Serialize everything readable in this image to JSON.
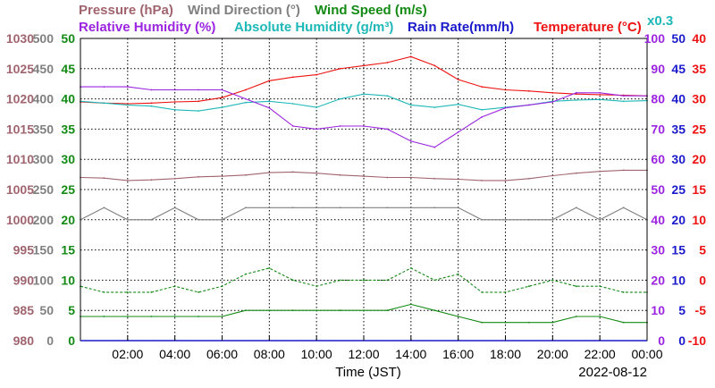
{
  "chart_data": {
    "type": "line",
    "date": "2022-08-12",
    "xlabel": "Time (JST)",
    "x_ticks": [
      "02:00",
      "04:00",
      "06:00",
      "08:00",
      "10:00",
      "12:00",
      "14:00",
      "16:00",
      "18:00",
      "20:00",
      "22:00",
      "00:00"
    ],
    "x_range_hours": [
      0,
      24
    ],
    "legend": [
      {
        "key": "pressure",
        "name": "Pressure (hPa)",
        "color": "#a0646e"
      },
      {
        "key": "wind_dir",
        "name": "Wind Direction (°)",
        "color": "#808080"
      },
      {
        "key": "wind_speed",
        "name": "Wind Speed (m/s)",
        "color": "#138a13"
      },
      {
        "key": "rh",
        "name": "Relative Humidity (%)",
        "color": "#9b25e0"
      },
      {
        "key": "ah",
        "name": "Absolute Humidity (g/m³)",
        "color": "#1fb8b8"
      },
      {
        "key": "rain",
        "name": "Rain Rate(mm/h)",
        "color": "#1a1acc"
      },
      {
        "key": "temp",
        "name": "Temperature (°C)",
        "color": "#ee1111"
      }
    ],
    "ah_scale_note": "x0.3",
    "axes": {
      "pressure": {
        "range": [
          980,
          1030
        ],
        "ticks": [
          "1030",
          "1025",
          "1020",
          "1015",
          "1010",
          "1005",
          "1000",
          "995",
          "990",
          "985",
          "980"
        ],
        "color": "#a0646e"
      },
      "wind_dir": {
        "range": [
          0,
          500
        ],
        "ticks": [
          "500",
          "450",
          "400",
          "350",
          "300",
          "250",
          "200",
          "150",
          "100",
          "50",
          "0"
        ],
        "color": "#808080"
      },
      "wind_speed": {
        "range": [
          0,
          50
        ],
        "ticks": [
          "50",
          "45",
          "40",
          "35",
          "30",
          "25",
          "20",
          "15",
          "10",
          "5",
          "0"
        ],
        "color": "#138a13"
      },
      "rh": {
        "range": [
          0,
          100
        ],
        "ticks": [
          "100",
          "90",
          "80",
          "70",
          "60",
          "50",
          "40",
          "30",
          "20",
          "10",
          "0"
        ],
        "color": "#9b25e0"
      },
      "rain": {
        "range": [
          0,
          50
        ],
        "ticks": [
          "50",
          "45",
          "40",
          "35",
          "30",
          "25",
          "20",
          "15",
          "10",
          "5",
          "0"
        ],
        "color": "#1a1acc"
      },
      "temp": {
        "range": [
          -10,
          40
        ],
        "ticks": [
          "40",
          "35",
          "30",
          "25",
          "20",
          "15",
          "10",
          "5",
          "0",
          "-5",
          "-10"
        ],
        "color": "#ee1111"
      }
    },
    "series": [
      {
        "key": "temp",
        "name": "Temperature (°C)",
        "color": "#ee1111",
        "x": [
          0,
          1,
          2,
          3,
          4,
          5,
          6,
          7,
          8,
          9,
          10,
          11,
          12,
          13,
          14,
          15,
          16,
          17,
          18,
          19,
          20,
          21,
          22,
          23,
          24
        ],
        "y": [
          29.5,
          29.3,
          29.2,
          29.3,
          29.5,
          29.6,
          30.2,
          31.5,
          33.0,
          33.6,
          34.0,
          35.0,
          35.5,
          36.0,
          37.0,
          35.5,
          33.2,
          32.0,
          31.5,
          31.3,
          31.0,
          30.8,
          30.7,
          30.6,
          30.5
        ]
      },
      {
        "key": "ah",
        "name": "Absolute Humidity (g/m³)",
        "color": "#1fb8b8",
        "axis": "temp",
        "x": [
          0,
          1,
          2,
          3,
          4,
          5,
          6,
          7,
          8,
          9,
          10,
          11,
          12,
          13,
          14,
          15,
          16,
          17,
          18,
          19,
          20,
          21,
          22,
          23,
          24
        ],
        "y": [
          29.6,
          29.3,
          29.0,
          28.8,
          28.2,
          28.0,
          28.6,
          29.4,
          29.6,
          29.2,
          28.6,
          30.0,
          30.8,
          30.5,
          29.0,
          28.6,
          29.1,
          28.2,
          28.6,
          29.0,
          29.6,
          29.8,
          29.9,
          29.6,
          29.7
        ]
      },
      {
        "key": "rh",
        "name": "Relative Humidity (%)",
        "color": "#9b25e0",
        "x": [
          0,
          1,
          2,
          3,
          4,
          5,
          6,
          7,
          8,
          9,
          10,
          11,
          12,
          13,
          14,
          15,
          16,
          17,
          18,
          19,
          20,
          21,
          22,
          23,
          24
        ],
        "y": [
          84,
          84,
          84,
          83,
          83,
          83,
          83,
          80,
          77,
          71,
          70,
          71,
          71,
          70,
          66,
          64,
          69,
          74,
          77,
          78,
          79,
          82,
          82,
          81,
          81
        ]
      },
      {
        "key": "pressure",
        "name": "Pressure (hPa)",
        "color": "#a0646e",
        "x": [
          0,
          1,
          2,
          3,
          4,
          5,
          6,
          7,
          8,
          9,
          10,
          11,
          12,
          13,
          14,
          15,
          16,
          17,
          18,
          19,
          20,
          21,
          22,
          23,
          24
        ],
        "y": [
          1007.0,
          1006.9,
          1006.5,
          1006.6,
          1006.8,
          1007.1,
          1007.2,
          1007.4,
          1007.8,
          1007.9,
          1007.7,
          1007.4,
          1007.2,
          1007.0,
          1007.0,
          1006.8,
          1006.7,
          1006.5,
          1006.5,
          1006.8,
          1007.3,
          1007.7,
          1008.0,
          1008.2,
          1008.2
        ]
      },
      {
        "key": "wind_dir",
        "name": "Wind Direction (°)",
        "color": "#808080",
        "x": [
          0,
          1,
          2,
          3,
          4,
          5,
          6,
          7,
          8,
          9,
          10,
          11,
          12,
          13,
          14,
          15,
          16,
          17,
          18,
          19,
          20,
          21,
          22,
          23,
          24
        ],
        "y": [
          200,
          220,
          200,
          200,
          220,
          200,
          200,
          220,
          220,
          220,
          220,
          220,
          220,
          220,
          220,
          220,
          220,
          200,
          200,
          200,
          200,
          220,
          200,
          220,
          200
        ]
      },
      {
        "key": "wind_gust",
        "name": "Wind Speed (m/s)",
        "color": "#138a13",
        "dashed": true,
        "x": [
          0,
          1,
          2,
          3,
          4,
          5,
          6,
          7,
          8,
          9,
          10,
          11,
          12,
          13,
          14,
          15,
          16,
          17,
          18,
          19,
          20,
          21,
          22,
          23,
          24
        ],
        "y": [
          9,
          8,
          8,
          8,
          9,
          8,
          9,
          11,
          12,
          10,
          9,
          10,
          10,
          10,
          12,
          10,
          11,
          8,
          8,
          9,
          10,
          9,
          9,
          8,
          8
        ]
      },
      {
        "key": "wind_speed",
        "name": "Wind Speed (m/s)",
        "color": "#138a13",
        "x": [
          0,
          1,
          2,
          3,
          4,
          5,
          6,
          7,
          8,
          9,
          10,
          11,
          12,
          13,
          14,
          15,
          16,
          17,
          18,
          19,
          20,
          21,
          22,
          23,
          24
        ],
        "y": [
          4,
          4,
          4,
          4,
          4,
          4,
          4,
          5,
          5,
          5,
          5,
          5,
          5,
          5,
          6,
          5,
          4,
          3,
          3,
          3,
          3,
          4,
          4,
          3,
          3
        ]
      }
    ]
  }
}
